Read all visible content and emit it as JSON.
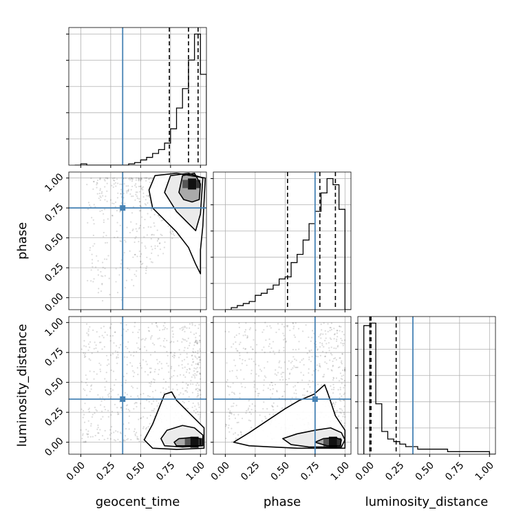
{
  "chart_data": {
    "type": "corner",
    "parameters": [
      "geocent_time",
      "phase",
      "luminosity_distance"
    ],
    "truths": [
      0.35,
      0.75,
      0.36
    ],
    "truth_color": "#4682b4",
    "axis_range": [
      -0.1,
      1.05
    ],
    "tick_labels": [
      "0.00",
      "0.25",
      "0.50",
      "0.75",
      "1.00"
    ],
    "grid": true,
    "histograms": [
      {
        "parameter": "geocent_time",
        "bin_edges": [
          -0.05,
          0.0,
          0.05,
          0.1,
          0.15,
          0.2,
          0.25,
          0.3,
          0.35,
          0.4,
          0.45,
          0.5,
          0.55,
          0.6,
          0.65,
          0.7,
          0.75,
          0.8,
          0.85,
          0.9,
          0.95,
          1.0,
          1.05
        ],
        "counts": [
          0,
          1,
          0,
          0,
          0,
          0,
          0,
          0,
          0,
          1,
          2,
          4,
          6,
          9,
          12,
          17,
          28,
          44,
          59,
          81,
          101,
          70
        ],
        "quantiles": [
          0.74,
          0.9,
          0.98
        ]
      },
      {
        "parameter": "phase",
        "bin_edges": [
          0.0,
          0.05,
          0.1,
          0.15,
          0.2,
          0.25,
          0.3,
          0.35,
          0.4,
          0.45,
          0.5,
          0.55,
          0.6,
          0.65,
          0.7,
          0.75,
          0.8,
          0.85,
          0.9,
          0.95,
          1.0,
          1.05
        ],
        "counts": [
          0,
          1,
          2,
          3,
          4,
          7,
          8,
          10,
          12,
          15,
          16,
          23,
          27,
          34,
          42,
          48,
          57,
          64,
          61,
          49,
          0
        ],
        "quantiles": [
          0.52,
          0.79,
          0.92
        ]
      },
      {
        "parameter": "luminosity_distance",
        "bin_edges": [
          -0.05,
          0.0,
          0.05,
          0.1,
          0.15,
          0.2,
          0.25,
          0.3,
          0.35,
          0.4,
          0.45,
          0.5,
          0.55,
          0.6,
          0.65,
          0.7,
          0.75,
          0.8,
          0.85,
          0.9,
          0.95,
          1.0,
          1.05
        ],
        "counts": [
          51,
          52,
          20,
          9,
          6,
          5,
          4,
          3,
          3,
          2,
          2,
          2,
          2,
          2,
          1,
          1,
          1,
          1,
          1,
          1,
          1,
          0
        ],
        "quantiles": [
          0.0,
          0.01,
          0.22
        ]
      }
    ],
    "pair_densities": [
      {
        "x": "geocent_time",
        "y": "phase",
        "peak": [
          0.93,
          0.95
        ],
        "contours": [
          [
            [
              0.82,
              0.88
            ],
            [
              0.85,
              1.02
            ],
            [
              0.95,
              1.04
            ],
            [
              1.0,
              0.95
            ],
            [
              0.99,
              0.82
            ],
            [
              0.93,
              0.8
            ],
            [
              0.86,
              0.82
            ]
          ],
          [
            [
              0.7,
              0.88
            ],
            [
              0.75,
              1.02
            ],
            [
              0.9,
              1.04
            ],
            [
              1.02,
              1.0
            ],
            [
              1.0,
              0.7
            ],
            [
              0.96,
              0.56
            ],
            [
              0.9,
              0.62
            ],
            [
              0.8,
              0.72
            ]
          ],
          [
            [
              0.57,
              0.9
            ],
            [
              0.62,
              1.02
            ],
            [
              0.8,
              1.04
            ],
            [
              1.04,
              1.0
            ],
            [
              1.02,
              0.6
            ],
            [
              1.0,
              0.4
            ],
            [
              1.0,
              0.2
            ],
            [
              0.96,
              0.28
            ],
            [
              0.9,
              0.42
            ],
            [
              0.8,
              0.55
            ],
            [
              0.7,
              0.65
            ],
            [
              0.6,
              0.75
            ]
          ]
        ]
      },
      {
        "x": "geocent_time",
        "y": "luminosity_distance",
        "peak": [
          0.95,
          0.0
        ],
        "contours": [
          [
            [
              0.78,
              0.0
            ],
            [
              0.82,
              0.03
            ],
            [
              0.93,
              0.04
            ],
            [
              1.0,
              0.03
            ],
            [
              1.0,
              -0.03
            ],
            [
              0.9,
              -0.03
            ],
            [
              0.8,
              -0.03
            ]
          ],
          [
            [
              0.67,
              0.03
            ],
            [
              0.72,
              0.1
            ],
            [
              0.85,
              0.14
            ],
            [
              0.95,
              0.12
            ],
            [
              1.02,
              0.06
            ],
            [
              1.02,
              -0.03
            ],
            [
              0.85,
              -0.04
            ],
            [
              0.7,
              -0.03
            ]
          ],
          [
            [
              0.53,
              0.02
            ],
            [
              0.6,
              0.15
            ],
            [
              0.66,
              0.3
            ],
            [
              0.7,
              0.4
            ],
            [
              0.76,
              0.42
            ],
            [
              0.8,
              0.35
            ],
            [
              0.9,
              0.25
            ],
            [
              1.03,
              0.12
            ],
            [
              1.03,
              -0.05
            ],
            [
              0.8,
              -0.06
            ],
            [
              0.6,
              -0.05
            ]
          ]
        ]
      },
      {
        "x": "phase",
        "y": "luminosity_distance",
        "peak": [
          0.9,
          0.0
        ],
        "contours": [
          [
            [
              0.75,
              0.0
            ],
            [
              0.82,
              0.03
            ],
            [
              0.92,
              0.04
            ],
            [
              0.97,
              0.02
            ],
            [
              0.96,
              -0.03
            ],
            [
              0.85,
              -0.03
            ]
          ],
          [
            [
              0.48,
              0.03
            ],
            [
              0.6,
              0.07
            ],
            [
              0.75,
              0.1
            ],
            [
              0.88,
              0.12
            ],
            [
              0.97,
              0.08
            ],
            [
              1.0,
              0.02
            ],
            [
              0.97,
              -0.04
            ],
            [
              0.7,
              -0.04
            ],
            [
              0.55,
              -0.02
            ]
          ],
          [
            [
              0.07,
              0.0
            ],
            [
              0.2,
              0.08
            ],
            [
              0.35,
              0.18
            ],
            [
              0.5,
              0.28
            ],
            [
              0.62,
              0.35
            ],
            [
              0.74,
              0.4
            ],
            [
              0.83,
              0.48
            ],
            [
              0.86,
              0.4
            ],
            [
              0.92,
              0.22
            ],
            [
              1.0,
              0.1
            ],
            [
              1.0,
              -0.05
            ],
            [
              0.6,
              -0.05
            ],
            [
              0.2,
              -0.03
            ]
          ]
        ]
      }
    ]
  }
}
